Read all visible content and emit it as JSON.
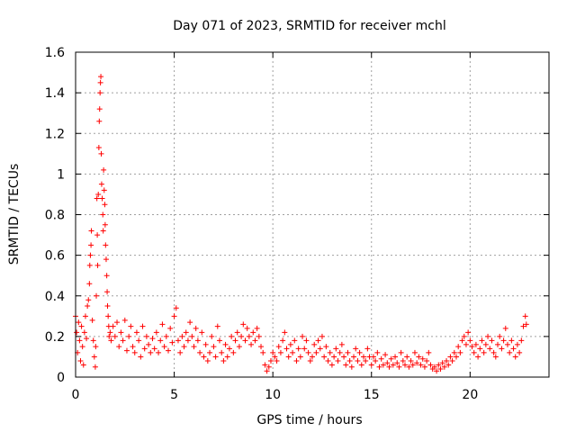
{
  "chart_data": {
    "type": "scatter",
    "title": "Day 071 of 2023, SRMTID for receiver mchl",
    "xlabel": "GPS time / hours",
    "ylabel": "SRMTID / TECUs",
    "xlim": [
      0,
      24
    ],
    "ylim": [
      0,
      1.6
    ],
    "xticks": [
      0,
      5,
      10,
      15,
      20
    ],
    "yticks": [
      0,
      0.2,
      0.4,
      0.6,
      0.8,
      1,
      1.2,
      1.4,
      1.6
    ],
    "xtick_labels": [
      "0",
      "5",
      "10",
      "15",
      "20"
    ],
    "ytick_labels": [
      "0",
      "0.2",
      "0.4",
      "0.6",
      "0.8",
      "1",
      "1.2",
      "1.4",
      "1.6"
    ],
    "grid": true,
    "marker": "+",
    "color": "#ff0000",
    "series": [
      {
        "name": "SRMTID",
        "points": [
          [
            0.0,
            0.3
          ],
          [
            0.05,
            0.22
          ],
          [
            0.1,
            0.12
          ],
          [
            0.15,
            0.27
          ],
          [
            0.2,
            0.18
          ],
          [
            0.25,
            0.08
          ],
          [
            0.3,
            0.25
          ],
          [
            0.35,
            0.15
          ],
          [
            0.4,
            0.06
          ],
          [
            0.45,
            0.22
          ],
          [
            0.5,
            0.3
          ],
          [
            0.55,
            0.19
          ],
          [
            0.6,
            0.35
          ],
          [
            0.65,
            0.38
          ],
          [
            0.7,
            0.46
          ],
          [
            0.72,
            0.55
          ],
          [
            0.75,
            0.6
          ],
          [
            0.78,
            0.65
          ],
          [
            0.8,
            0.72
          ],
          [
            0.85,
            0.28
          ],
          [
            0.9,
            0.18
          ],
          [
            0.95,
            0.1
          ],
          [
            1.0,
            0.05
          ],
          [
            1.02,
            0.15
          ],
          [
            1.05,
            0.4
          ],
          [
            1.08,
            0.88
          ],
          [
            1.1,
            0.7
          ],
          [
            1.12,
            0.55
          ],
          [
            1.15,
            0.9
          ],
          [
            1.18,
            1.13
          ],
          [
            1.2,
            1.26
          ],
          [
            1.22,
            1.32
          ],
          [
            1.24,
            1.4
          ],
          [
            1.26,
            1.45
          ],
          [
            1.28,
            1.48
          ],
          [
            1.3,
            1.1
          ],
          [
            1.32,
            0.95
          ],
          [
            1.35,
            0.88
          ],
          [
            1.38,
            0.8
          ],
          [
            1.4,
            0.72
          ],
          [
            1.42,
            1.02
          ],
          [
            1.45,
            0.92
          ],
          [
            1.48,
            0.85
          ],
          [
            1.5,
            0.75
          ],
          [
            1.52,
            0.65
          ],
          [
            1.55,
            0.58
          ],
          [
            1.58,
            0.5
          ],
          [
            1.6,
            0.42
          ],
          [
            1.62,
            0.35
          ],
          [
            1.65,
            0.3
          ],
          [
            1.68,
            0.25
          ],
          [
            1.7,
            0.2
          ],
          [
            1.75,
            0.22
          ],
          [
            1.8,
            0.18
          ],
          [
            1.9,
            0.25
          ],
          [
            2.0,
            0.2
          ],
          [
            2.1,
            0.27
          ],
          [
            2.2,
            0.15
          ],
          [
            2.3,
            0.22
          ],
          [
            2.4,
            0.18
          ],
          [
            2.5,
            0.28
          ],
          [
            2.6,
            0.13
          ],
          [
            2.7,
            0.2
          ],
          [
            2.8,
            0.25
          ],
          [
            2.9,
            0.15
          ],
          [
            3.0,
            0.12
          ],
          [
            3.1,
            0.22
          ],
          [
            3.2,
            0.18
          ],
          [
            3.3,
            0.1
          ],
          [
            3.4,
            0.25
          ],
          [
            3.5,
            0.14
          ],
          [
            3.6,
            0.2
          ],
          [
            3.7,
            0.16
          ],
          [
            3.8,
            0.12
          ],
          [
            3.9,
            0.19
          ],
          [
            4.0,
            0.14
          ],
          [
            4.1,
            0.22
          ],
          [
            4.2,
            0.12
          ],
          [
            4.3,
            0.18
          ],
          [
            4.4,
            0.26
          ],
          [
            4.5,
            0.15
          ],
          [
            4.6,
            0.2
          ],
          [
            4.7,
            0.13
          ],
          [
            4.8,
            0.24
          ],
          [
            4.9,
            0.17
          ],
          [
            5.0,
            0.3
          ],
          [
            5.1,
            0.34
          ],
          [
            5.2,
            0.18
          ],
          [
            5.3,
            0.12
          ],
          [
            5.4,
            0.2
          ],
          [
            5.5,
            0.15
          ],
          [
            5.6,
            0.22
          ],
          [
            5.7,
            0.18
          ],
          [
            5.8,
            0.27
          ],
          [
            5.9,
            0.2
          ],
          [
            6.0,
            0.15
          ],
          [
            6.1,
            0.24
          ],
          [
            6.2,
            0.18
          ],
          [
            6.3,
            0.12
          ],
          [
            6.4,
            0.22
          ],
          [
            6.5,
            0.1
          ],
          [
            6.6,
            0.16
          ],
          [
            6.7,
            0.08
          ],
          [
            6.8,
            0.12
          ],
          [
            6.9,
            0.2
          ],
          [
            7.0,
            0.15
          ],
          [
            7.1,
            0.1
          ],
          [
            7.2,
            0.25
          ],
          [
            7.3,
            0.18
          ],
          [
            7.4,
            0.12
          ],
          [
            7.5,
            0.08
          ],
          [
            7.6,
            0.16
          ],
          [
            7.7,
            0.1
          ],
          [
            7.8,
            0.14
          ],
          [
            7.9,
            0.2
          ],
          [
            8.0,
            0.12
          ],
          [
            8.1,
            0.18
          ],
          [
            8.2,
            0.22
          ],
          [
            8.3,
            0.15
          ],
          [
            8.4,
            0.2
          ],
          [
            8.5,
            0.26
          ],
          [
            8.6,
            0.18
          ],
          [
            8.7,
            0.24
          ],
          [
            8.8,
            0.2
          ],
          [
            8.9,
            0.16
          ],
          [
            9.0,
            0.22
          ],
          [
            9.1,
            0.18
          ],
          [
            9.2,
            0.24
          ],
          [
            9.3,
            0.2
          ],
          [
            9.4,
            0.15
          ],
          [
            9.5,
            0.12
          ],
          [
            9.6,
            0.06
          ],
          [
            9.7,
            0.03
          ],
          [
            9.8,
            0.05
          ],
          [
            9.9,
            0.08
          ],
          [
            10.0,
            0.12
          ],
          [
            10.1,
            0.1
          ],
          [
            10.2,
            0.08
          ],
          [
            10.3,
            0.15
          ],
          [
            10.4,
            0.12
          ],
          [
            10.5,
            0.18
          ],
          [
            10.6,
            0.22
          ],
          [
            10.7,
            0.14
          ],
          [
            10.8,
            0.1
          ],
          [
            10.9,
            0.16
          ],
          [
            11.0,
            0.12
          ],
          [
            11.1,
            0.18
          ],
          [
            11.2,
            0.08
          ],
          [
            11.3,
            0.14
          ],
          [
            11.4,
            0.1
          ],
          [
            11.5,
            0.2
          ],
          [
            11.6,
            0.14
          ],
          [
            11.7,
            0.18
          ],
          [
            11.8,
            0.12
          ],
          [
            11.9,
            0.08
          ],
          [
            12.0,
            0.1
          ],
          [
            12.1,
            0.16
          ],
          [
            12.2,
            0.12
          ],
          [
            12.3,
            0.18
          ],
          [
            12.4,
            0.14
          ],
          [
            12.5,
            0.2
          ],
          [
            12.6,
            0.1
          ],
          [
            12.7,
            0.15
          ],
          [
            12.8,
            0.08
          ],
          [
            12.9,
            0.12
          ],
          [
            13.0,
            0.06
          ],
          [
            13.1,
            0.1
          ],
          [
            13.2,
            0.14
          ],
          [
            13.3,
            0.08
          ],
          [
            13.4,
            0.12
          ],
          [
            13.5,
            0.16
          ],
          [
            13.6,
            0.1
          ],
          [
            13.7,
            0.06
          ],
          [
            13.8,
            0.12
          ],
          [
            13.9,
            0.08
          ],
          [
            14.0,
            0.05
          ],
          [
            14.1,
            0.1
          ],
          [
            14.2,
            0.14
          ],
          [
            14.3,
            0.08
          ],
          [
            14.4,
            0.12
          ],
          [
            14.5,
            0.06
          ],
          [
            14.6,
            0.1
          ],
          [
            14.7,
            0.08
          ],
          [
            14.8,
            0.14
          ],
          [
            14.9,
            0.1
          ],
          [
            15.0,
            0.06
          ],
          [
            15.1,
            0.1
          ],
          [
            15.2,
            0.08
          ],
          [
            15.3,
            0.12
          ],
          [
            15.4,
            0.05
          ],
          [
            15.5,
            0.09
          ],
          [
            15.6,
            0.06
          ],
          [
            15.7,
            0.11
          ],
          [
            15.8,
            0.07
          ],
          [
            15.9,
            0.05
          ],
          [
            16.0,
            0.09
          ],
          [
            16.1,
            0.06
          ],
          [
            16.2,
            0.1
          ],
          [
            16.3,
            0.07
          ],
          [
            16.4,
            0.05
          ],
          [
            16.5,
            0.12
          ],
          [
            16.6,
            0.08
          ],
          [
            16.7,
            0.06
          ],
          [
            16.8,
            0.1
          ],
          [
            16.9,
            0.05
          ],
          [
            17.0,
            0.08
          ],
          [
            17.1,
            0.06
          ],
          [
            17.2,
            0.12
          ],
          [
            17.3,
            0.07
          ],
          [
            17.4,
            0.1
          ],
          [
            17.5,
            0.06
          ],
          [
            17.6,
            0.09
          ],
          [
            17.7,
            0.05
          ],
          [
            17.8,
            0.08
          ],
          [
            17.9,
            0.12
          ],
          [
            18.0,
            0.06
          ],
          [
            18.1,
            0.04
          ],
          [
            18.2,
            0.05
          ],
          [
            18.3,
            0.03
          ],
          [
            18.4,
            0.06
          ],
          [
            18.5,
            0.04
          ],
          [
            18.6,
            0.07
          ],
          [
            18.7,
            0.05
          ],
          [
            18.8,
            0.08
          ],
          [
            18.9,
            0.06
          ],
          [
            19.0,
            0.1
          ],
          [
            19.1,
            0.08
          ],
          [
            19.2,
            0.12
          ],
          [
            19.3,
            0.1
          ],
          [
            19.4,
            0.15
          ],
          [
            19.5,
            0.12
          ],
          [
            19.6,
            0.18
          ],
          [
            19.7,
            0.2
          ],
          [
            19.8,
            0.16
          ],
          [
            19.9,
            0.22
          ],
          [
            20.0,
            0.18
          ],
          [
            20.1,
            0.15
          ],
          [
            20.2,
            0.12
          ],
          [
            20.3,
            0.16
          ],
          [
            20.4,
            0.1
          ],
          [
            20.5,
            0.14
          ],
          [
            20.6,
            0.18
          ],
          [
            20.7,
            0.12
          ],
          [
            20.8,
            0.16
          ],
          [
            20.9,
            0.2
          ],
          [
            21.0,
            0.14
          ],
          [
            21.1,
            0.18
          ],
          [
            21.2,
            0.12
          ],
          [
            21.3,
            0.1
          ],
          [
            21.4,
            0.16
          ],
          [
            21.5,
            0.2
          ],
          [
            21.6,
            0.14
          ],
          [
            21.7,
            0.18
          ],
          [
            21.8,
            0.24
          ],
          [
            21.9,
            0.16
          ],
          [
            22.0,
            0.12
          ],
          [
            22.1,
            0.18
          ],
          [
            22.2,
            0.14
          ],
          [
            22.3,
            0.1
          ],
          [
            22.4,
            0.16
          ],
          [
            22.5,
            0.12
          ],
          [
            22.6,
            0.18
          ],
          [
            22.7,
            0.25
          ],
          [
            22.8,
            0.3
          ],
          [
            22.85,
            0.26
          ]
        ]
      }
    ]
  }
}
